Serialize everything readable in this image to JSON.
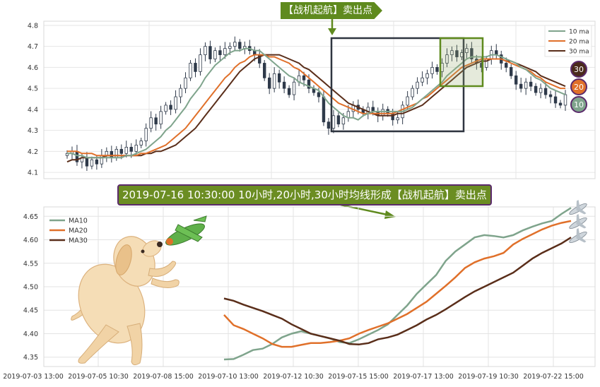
{
  "chart_data": [
    {
      "type": "candlestick",
      "ylim": [
        4.07,
        4.82
      ],
      "yticks": [
        "4.1",
        "4.2",
        "4.3",
        "4.4",
        "4.5",
        "4.6",
        "4.7",
        "4.8"
      ],
      "grid": true,
      "legend": {
        "placement": "top-right",
        "entries": [
          "10 ma",
          "20 ma",
          "30 ma"
        ]
      },
      "series_colors": {
        "ma10": "#7fa48c",
        "ma20": "#e0702a",
        "ma30": "#5a2e1a"
      },
      "close": [
        4.19,
        4.2,
        4.15,
        4.17,
        4.13,
        4.16,
        4.14,
        4.18,
        4.2,
        4.17,
        4.21,
        4.19,
        4.22,
        4.2,
        4.23,
        4.25,
        4.31,
        4.36,
        4.33,
        4.39,
        4.42,
        4.4,
        4.46,
        4.5,
        4.55,
        4.62,
        4.58,
        4.66,
        4.7,
        4.64,
        4.68,
        4.66,
        4.69,
        4.7,
        4.72,
        4.69,
        4.7,
        4.68,
        4.66,
        4.62,
        4.55,
        4.5,
        4.57,
        4.53,
        4.5,
        4.47,
        4.53,
        4.56,
        4.54,
        4.5,
        4.48,
        4.46,
        4.34,
        4.31,
        4.37,
        4.33,
        4.36,
        4.39,
        4.42,
        4.4,
        4.38,
        4.41,
        4.39,
        4.37,
        4.4,
        4.38,
        4.35,
        4.36,
        4.42,
        4.46,
        4.5,
        4.53,
        4.55,
        4.57,
        4.6,
        4.58,
        4.62,
        4.66,
        4.68,
        4.65,
        4.67,
        4.69,
        4.64,
        4.62,
        4.6,
        4.64,
        4.68,
        4.66,
        4.62,
        4.6,
        4.56,
        4.52,
        4.5,
        4.53,
        4.51,
        4.48,
        4.5,
        4.47,
        4.46,
        4.43,
        4.42,
        4.47
      ],
      "ma10": [
        4.19,
        4.19,
        4.18,
        4.18,
        4.17,
        4.17,
        4.17,
        4.17,
        4.17,
        4.17,
        4.17,
        4.17,
        4.18,
        4.18,
        4.19,
        4.2,
        4.21,
        4.23,
        4.25,
        4.27,
        4.3,
        4.32,
        4.35,
        4.38,
        4.41,
        4.45,
        4.48,
        4.51,
        4.55,
        4.58,
        4.61,
        4.63,
        4.65,
        4.67,
        4.68,
        4.68,
        4.69,
        4.69,
        4.68,
        4.68,
        4.66,
        4.64,
        4.62,
        4.6,
        4.58,
        4.56,
        4.55,
        4.53,
        4.52,
        4.51,
        4.5,
        4.49,
        4.46,
        4.43,
        4.41,
        4.39,
        4.37,
        4.36,
        4.36,
        4.35,
        4.37,
        4.38,
        4.39,
        4.39,
        4.39,
        4.39,
        4.39,
        4.39,
        4.39,
        4.4,
        4.41,
        4.43,
        4.45,
        4.47,
        4.49,
        4.51,
        4.53,
        4.56,
        4.58,
        4.6,
        4.62,
        4.64,
        4.65,
        4.65,
        4.65,
        4.65,
        4.66,
        4.66,
        4.65,
        4.64,
        4.63,
        4.62,
        4.6,
        4.59,
        4.57,
        4.55,
        4.54,
        4.52,
        4.5,
        4.49,
        4.48,
        4.47
      ],
      "ma20": [
        4.2,
        4.2,
        4.2,
        4.19,
        4.19,
        4.19,
        4.18,
        4.18,
        4.18,
        4.18,
        4.18,
        4.18,
        4.18,
        4.18,
        4.18,
        4.19,
        4.19,
        4.2,
        4.21,
        4.22,
        4.23,
        4.25,
        4.27,
        4.29,
        4.31,
        4.34,
        4.37,
        4.4,
        4.43,
        4.46,
        4.49,
        4.52,
        4.55,
        4.57,
        4.6,
        4.62,
        4.63,
        4.65,
        4.66,
        4.66,
        4.66,
        4.65,
        4.65,
        4.64,
        4.63,
        4.62,
        4.6,
        4.59,
        4.57,
        4.55,
        4.53,
        4.51,
        4.49,
        4.47,
        4.45,
        4.43,
        4.42,
        4.41,
        4.4,
        4.39,
        4.38,
        4.38,
        4.38,
        4.38,
        4.38,
        4.38,
        4.38,
        4.39,
        4.4,
        4.41,
        4.42,
        4.43,
        4.45,
        4.46,
        4.48,
        4.5,
        4.52,
        4.54,
        4.56,
        4.58,
        4.6,
        4.61,
        4.62,
        4.63,
        4.64,
        4.64,
        4.64,
        4.64,
        4.64,
        4.63,
        4.62,
        4.61,
        4.6,
        4.59,
        4.58,
        4.56,
        4.55,
        4.53,
        4.52,
        4.51,
        4.5,
        4.5
      ],
      "ma30": [
        4.15,
        4.16,
        4.16,
        4.17,
        4.17,
        4.17,
        4.17,
        4.17,
        4.18,
        4.18,
        4.18,
        4.18,
        4.18,
        4.18,
        4.18,
        4.18,
        4.19,
        4.19,
        4.2,
        4.2,
        4.21,
        4.22,
        4.23,
        4.25,
        4.27,
        4.29,
        4.31,
        4.34,
        4.37,
        4.4,
        4.43,
        4.46,
        4.49,
        4.52,
        4.55,
        4.58,
        4.6,
        4.62,
        4.64,
        4.65,
        4.66,
        4.66,
        4.66,
        4.66,
        4.65,
        4.64,
        4.63,
        4.62,
        4.6,
        4.59,
        4.57,
        4.55,
        4.53,
        4.51,
        4.49,
        4.47,
        4.45,
        4.43,
        4.42,
        4.41,
        4.4,
        4.39,
        4.38,
        4.37,
        4.37,
        4.37,
        4.37,
        4.38,
        4.38,
        4.39,
        4.4,
        4.41,
        4.42,
        4.44,
        4.46,
        4.48,
        4.5,
        4.52,
        4.54,
        4.56,
        4.58,
        4.6,
        4.61,
        4.62,
        4.63,
        4.63,
        4.64,
        4.64,
        4.64,
        4.63,
        4.63,
        4.62,
        4.61,
        4.6,
        4.59,
        4.58,
        4.56,
        4.55,
        4.54,
        4.53,
        4.52,
        4.51
      ],
      "markers": [
        {
          "label": "30"
        },
        {
          "label": "20"
        },
        {
          "label": "10"
        }
      ]
    },
    {
      "type": "line",
      "ylim": [
        4.33,
        4.67
      ],
      "yticks": [
        "4.35",
        "4.40",
        "4.45",
        "4.50",
        "4.55",
        "4.60",
        "4.65"
      ],
      "xticks": [
        "2019-07-03 13:00",
        "2019-07-05 10:30",
        "2019-07-08 15:00",
        "2019-07-10 13:00",
        "2019-07-12 10:30",
        "2019-07-15 15:00",
        "2019-07-17 13:00",
        "2019-07-19 10:30",
        "2019-07-22 15:00"
      ],
      "grid": true,
      "legend": {
        "placement": "top-left"
      },
      "series": [
        {
          "name": "MA10",
          "color": "#7fa48c",
          "values": [
            4.345,
            4.346,
            4.355,
            4.365,
            4.368,
            4.378,
            4.392,
            4.4,
            4.405,
            4.4,
            4.395,
            4.39,
            4.382,
            4.38,
            4.388,
            4.398,
            4.408,
            4.42,
            4.44,
            4.46,
            4.485,
            4.505,
            4.525,
            4.555,
            4.575,
            4.59,
            4.605,
            4.61,
            4.608,
            4.605,
            4.61,
            4.62,
            4.628,
            4.635,
            4.64,
            4.655,
            4.668
          ]
        },
        {
          "name": "MA20",
          "color": "#e0702a",
          "values": [
            4.44,
            4.418,
            4.41,
            4.4,
            4.39,
            4.378,
            4.372,
            4.372,
            4.376,
            4.38,
            4.38,
            4.382,
            4.385,
            4.39,
            4.4,
            4.408,
            4.415,
            4.422,
            4.432,
            4.442,
            4.455,
            4.468,
            4.485,
            4.502,
            4.52,
            4.54,
            4.552,
            4.56,
            4.565,
            4.572,
            4.59,
            4.602,
            4.612,
            4.622,
            4.63,
            4.636,
            4.64
          ]
        },
        {
          "name": "MA30",
          "color": "#5a2e1a",
          "values": [
            4.475,
            4.47,
            4.462,
            4.455,
            4.448,
            4.44,
            4.432,
            4.42,
            4.41,
            4.4,
            4.395,
            4.39,
            4.385,
            4.378,
            4.377,
            4.38,
            4.388,
            4.392,
            4.398,
            4.408,
            4.418,
            4.43,
            4.44,
            4.452,
            4.465,
            4.478,
            4.49,
            4.5,
            4.51,
            4.52,
            4.53,
            4.545,
            4.56,
            4.572,
            4.582,
            4.592,
            4.605
          ]
        }
      ]
    }
  ],
  "annotations": {
    "top_banner": "【战机起航】卖出点",
    "middle_banner": "2019-07-16 10:30:00 10小时,20小时,30小时均线形成【战机起航】卖出点"
  }
}
